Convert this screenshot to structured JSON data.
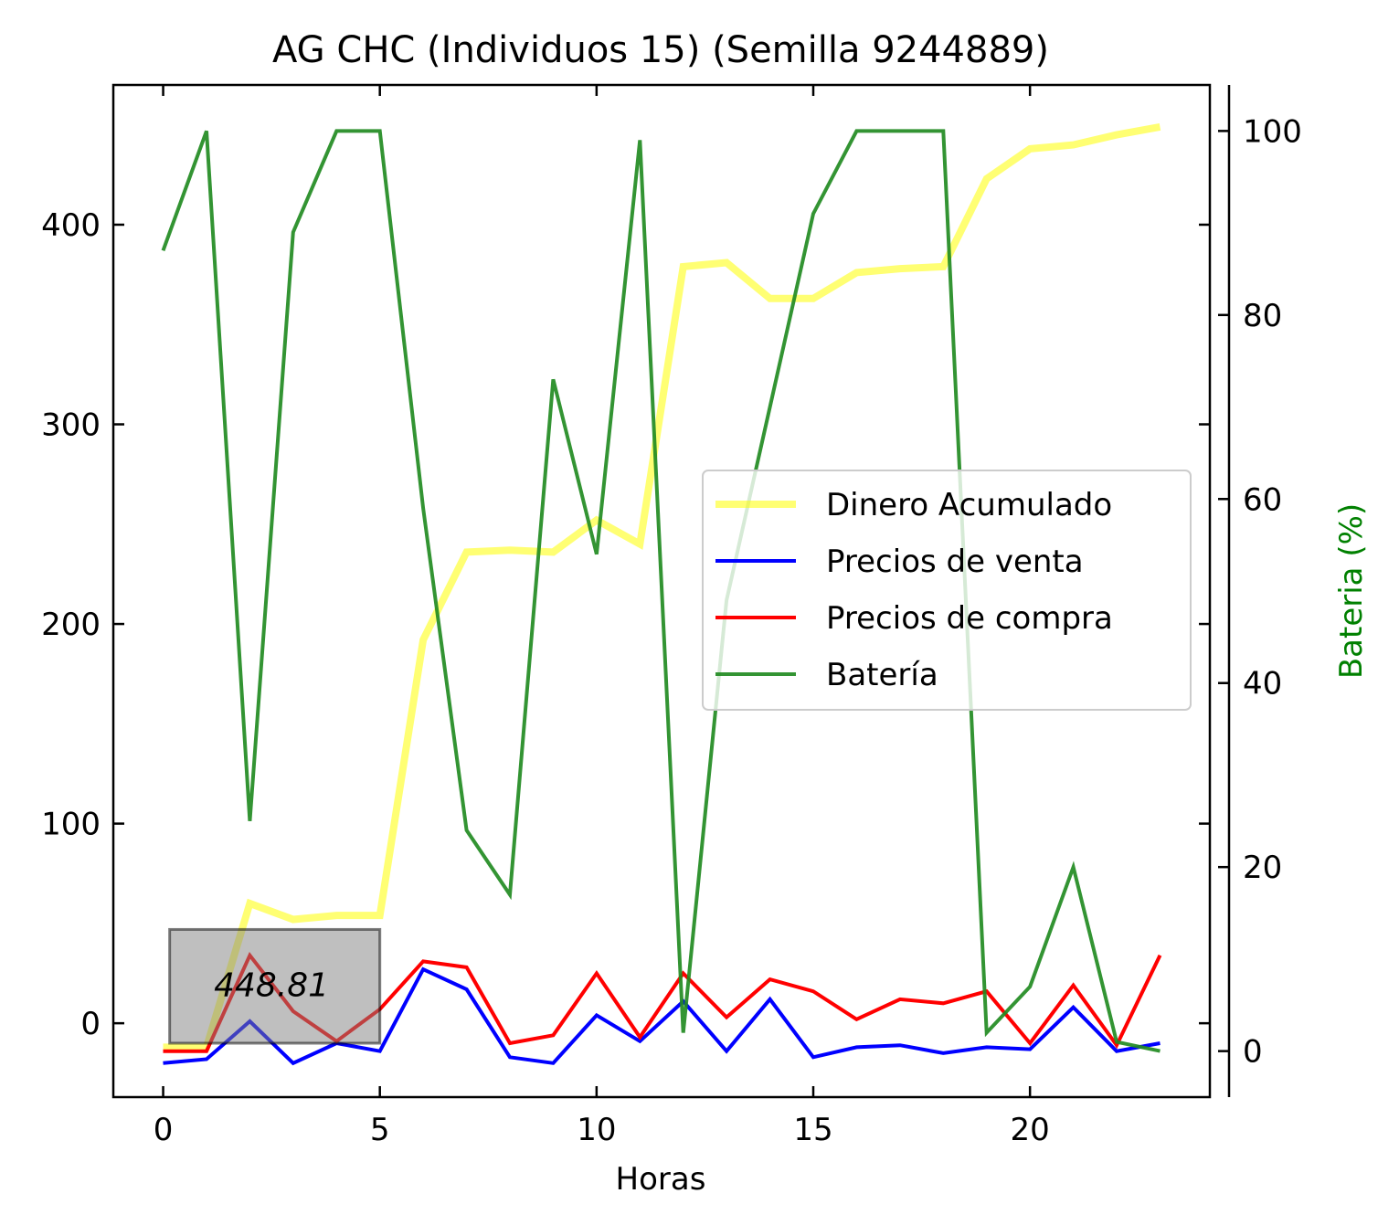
{
  "chart_data": {
    "type": "line",
    "title": "AG CHC (Individuos 15) (Semilla 9244889)",
    "xlabel": "Horas",
    "ylabel": "",
    "y2label": "Bateria (%)",
    "xlim": [
      -1.15,
      24.15
    ],
    "ylim": [
      -37,
      470
    ],
    "y2lim": [
      -5,
      105
    ],
    "xticks": [
      0,
      5,
      10,
      15,
      20
    ],
    "yticks": [
      0,
      100,
      200,
      300,
      400
    ],
    "y2ticks": [
      0,
      20,
      40,
      60,
      80,
      100
    ],
    "grid": false,
    "legend_position": "center-right",
    "annotation": {
      "text": "448.81",
      "x": 2.5,
      "y": 19
    },
    "annotation_box": {
      "x0": 0.15,
      "x1": 5.0,
      "y0": -10,
      "y1": 47
    },
    "x": [
      0,
      1,
      2,
      3,
      4,
      5,
      6,
      7,
      8,
      9,
      10,
      11,
      12,
      13,
      14,
      15,
      16,
      17,
      18,
      19,
      20,
      21,
      22,
      23
    ],
    "series": [
      {
        "name": "Dinero Acumulado",
        "axis": "left",
        "color": "#ffff00",
        "opacity": 0.55,
        "width": 8,
        "values": [
          -12,
          -12,
          60,
          52,
          54,
          54,
          192,
          236,
          237,
          236,
          252,
          240,
          379,
          381,
          363,
          363,
          376,
          378,
          379,
          423,
          438,
          440,
          445,
          449
        ]
      },
      {
        "name": "Precios de venta",
        "axis": "left",
        "color": "#0000ff",
        "opacity": 1,
        "width": 4,
        "values": [
          -20,
          -18,
          1,
          -20,
          -10,
          -14,
          27,
          17,
          -17,
          -20,
          4,
          -9,
          11,
          -14,
          12,
          -17,
          -12,
          -11,
          -15,
          -12,
          -13,
          8,
          -14,
          -10
        ]
      },
      {
        "name": "Precios de compra",
        "axis": "left",
        "color": "#ff0000",
        "opacity": 1,
        "width": 4,
        "values": [
          -14,
          -14,
          34,
          6,
          -9,
          7,
          31,
          28,
          -10,
          -6,
          25,
          -7,
          25,
          3,
          22,
          16,
          2,
          12,
          10,
          16,
          -10,
          19,
          -11,
          34
        ]
      },
      {
        "name": "Batería",
        "axis": "right",
        "color": "#228b22",
        "opacity": 0.92,
        "width": 4,
        "values": [
          87,
          100,
          25,
          89,
          100,
          100,
          59,
          24,
          17,
          73,
          54,
          99,
          2,
          49,
          70,
          91,
          100,
          100,
          100,
          2,
          7,
          20,
          1,
          0
        ]
      }
    ]
  }
}
